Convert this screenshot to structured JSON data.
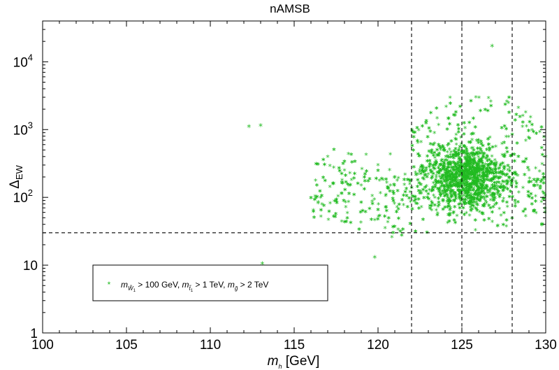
{
  "chart_data": {
    "type": "scatter",
    "title": "nAMSB",
    "xlabel": "m_h [GeV]",
    "ylabel": "Δ_EW",
    "xlim": [
      100,
      130
    ],
    "ylim": [
      1,
      40000
    ],
    "yscale": "log",
    "x_ticks": [
      {
        "value": 100,
        "label": "100"
      },
      {
        "value": 105,
        "label": "105"
      },
      {
        "value": 110,
        "label": "110"
      },
      {
        "value": 115,
        "label": "115"
      },
      {
        "value": 120,
        "label": "120"
      },
      {
        "value": 125,
        "label": "125"
      },
      {
        "value": 130,
        "label": "130"
      }
    ],
    "y_ticks": [
      {
        "value": 1,
        "label": "1"
      },
      {
        "value": 10,
        "label": "10"
      },
      {
        "value": 100,
        "label": "10",
        "exp": "2"
      },
      {
        "value": 1000,
        "label": "10",
        "exp": "3"
      },
      {
        "value": 10000,
        "label": "10",
        "exp": "4"
      }
    ],
    "reference_lines": {
      "vertical": [
        122,
        125,
        128
      ],
      "horizontal": [
        30
      ],
      "style": "dashed",
      "color": "#000000"
    },
    "grid": false,
    "legend": {
      "placement": "lower-left",
      "entries": [
        {
          "marker": "*",
          "color": "#22bb22",
          "label": "m_{W̃1} > 100 GeV, m_{t̃1} > 1 TeV, m_{g̃} > 2 TeV"
        }
      ]
    },
    "series": [
      {
        "marker": "*",
        "color": "#22bb22",
        "highlighted_points": [
          {
            "x": 112.3,
            "y": 1100
          },
          {
            "x": 113.0,
            "y": 1150
          },
          {
            "x": 113.1,
            "y": 10.5
          },
          {
            "x": 126.8,
            "y": 17000
          },
          {
            "x": 119.8,
            "y": 13
          }
        ],
        "dense_region": {
          "x_range": [
            115.5,
            130
          ],
          "y_range": [
            20,
            4000
          ],
          "core_center": {
            "x": 125.3,
            "y": 200
          },
          "note_values": [
            {
              "x": 117,
              "y": 400
            },
            {
              "x": 118,
              "y": 250
            },
            {
              "x": 119,
              "y": 150
            },
            {
              "x": 120,
              "y": 300
            },
            {
              "x": 121,
              "y": 200
            },
            {
              "x": 122,
              "y": 180
            },
            {
              "x": 123,
              "y": 220
            },
            {
              "x": 124,
              "y": 250
            },
            {
              "x": 125,
              "y": 300
            },
            {
              "x": 126,
              "y": 280
            },
            {
              "x": 127,
              "y": 200
            },
            {
              "x": 128,
              "y": 180
            },
            {
              "x": 129,
              "y": 250
            },
            {
              "x": 130,
              "y": 400
            }
          ]
        }
      }
    ]
  }
}
